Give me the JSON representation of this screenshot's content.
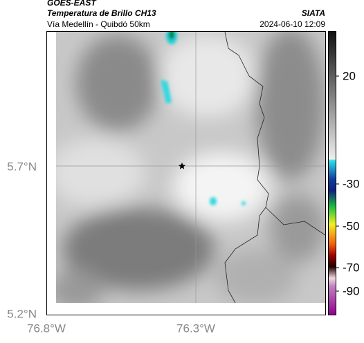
{
  "header": {
    "title": "GOES-EAST",
    "subtitle": "Temperatura de Brillo CH13",
    "source": "SIATA",
    "route": "Vía Medellín - Quibdó 50km",
    "datetime": "2024-06-10 12:09"
  },
  "map": {
    "lat_labels": [
      "5.7°N",
      "5.2°N"
    ],
    "lon_labels": [
      "76.8°W",
      "76.3°W"
    ]
  },
  "colorbar": {
    "ticks": [
      20,
      -30,
      -50,
      -70,
      -90
    ]
  }
}
